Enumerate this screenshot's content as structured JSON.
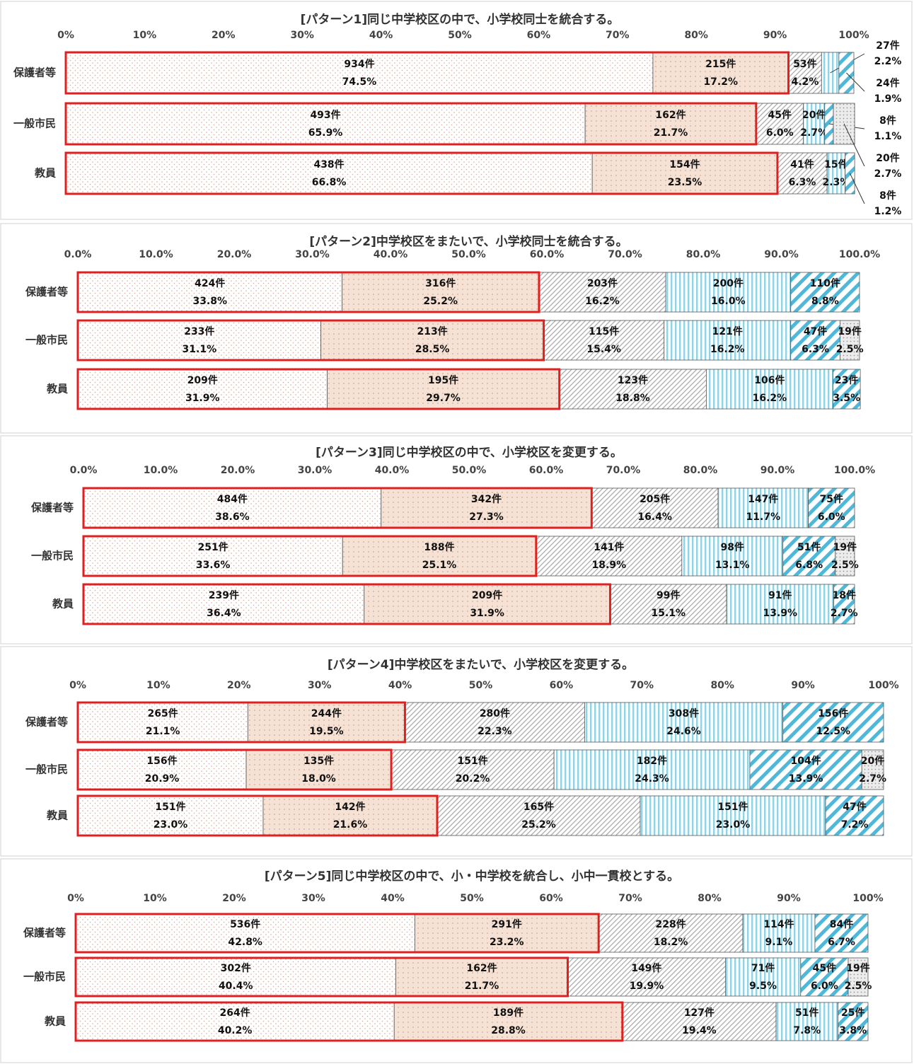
{
  "chart_data": [
    {
      "type": "bar",
      "orientation": "horizontal",
      "stacked": true,
      "title": "[パターン1]同じ中学校区の中で、小学校同士を統合する。",
      "categories": [
        "保護者等",
        "一般市民",
        "教員"
      ],
      "xlim": [
        0,
        100
      ],
      "xticks": [
        {
          "value": 0,
          "label": "0%"
        },
        {
          "value": 10,
          "label": "10%"
        },
        {
          "value": 20,
          "label": "20%"
        },
        {
          "value": 30,
          "label": "30%"
        },
        {
          "value": 40,
          "label": "40%"
        },
        {
          "value": 50,
          "label": "50%"
        },
        {
          "value": 60,
          "label": "60%"
        },
        {
          "value": 70,
          "label": "70%"
        },
        {
          "value": 80,
          "label": "80%"
        },
        {
          "value": 90,
          "label": "90%"
        },
        {
          "value": 100,
          "label": "100%"
        }
      ],
      "series": [
        {
          "color": "#d9a79a",
          "values": [
            74.5,
            65.9,
            66.8
          ],
          "value_labels": [
            "74.5%",
            "65.9%",
            "66.8%"
          ],
          "count_labels": [
            "934件",
            "493件",
            "438件"
          ]
        },
        {
          "color": "#f6e2d5",
          "values": [
            17.2,
            21.7,
            23.5
          ],
          "value_labels": [
            "17.2%",
            "21.7%",
            "23.5%"
          ],
          "count_labels": [
            "215件",
            "162件",
            "154件"
          ]
        },
        {
          "color": "#a6a6a6",
          "values": [
            4.2,
            6.0,
            6.3
          ],
          "value_labels": [
            "4.2%",
            "6.0%",
            "6.3%"
          ],
          "count_labels": [
            "53件",
            "45件",
            "41件"
          ]
        },
        {
          "color": "#8fd3e4",
          "values": [
            2.2,
            2.7,
            2.3
          ],
          "value_labels": [
            "2.2%",
            "2.7%",
            "2.3%"
          ],
          "count_labels": [
            "27件",
            "20件",
            "15件"
          ]
        },
        {
          "color": "#4fb8d8",
          "values": [
            1.9,
            1.1,
            1.2
          ],
          "value_labels": [
            "1.9%",
            "1.1%",
            "1.2%"
          ],
          "count_labels": [
            "24件",
            "8件",
            "8件"
          ]
        },
        {
          "color": "#bfbfbf",
          "values": [
            null,
            2.7,
            null
          ],
          "value_labels": [
            null,
            "2.7%",
            null
          ],
          "count_labels": [
            null,
            "20件",
            null
          ]
        }
      ]
    },
    {
      "type": "bar",
      "orientation": "horizontal",
      "stacked": true,
      "title": "[パターン2]中学校区をまたいで、小学校同士を統合する。",
      "categories": [
        "保護者等",
        "一般市民",
        "教員"
      ],
      "xlim": [
        0,
        100
      ],
      "xticks": [
        {
          "value": 0,
          "label": "0.0%"
        },
        {
          "value": 10,
          "label": "10.0%"
        },
        {
          "value": 20,
          "label": "20.0%"
        },
        {
          "value": 30,
          "label": "30.0%"
        },
        {
          "value": 40,
          "label": "40.0%"
        },
        {
          "value": 50,
          "label": "50.0%"
        },
        {
          "value": 60,
          "label": "60.0%"
        },
        {
          "value": 70,
          "label": "70.0%"
        },
        {
          "value": 80,
          "label": "80.0%"
        },
        {
          "value": 90,
          "label": "90.0%"
        },
        {
          "value": 100,
          "label": "100.0%"
        }
      ],
      "series": [
        {
          "color": "#d9a79a",
          "values": [
            33.8,
            31.1,
            31.9
          ],
          "value_labels": [
            "33.8%",
            "31.1%",
            "31.9%"
          ],
          "count_labels": [
            "424件",
            "233件",
            "209件"
          ]
        },
        {
          "color": "#f6e2d5",
          "values": [
            25.2,
            28.5,
            29.7
          ],
          "value_labels": [
            "25.2%",
            "28.5%",
            "29.7%"
          ],
          "count_labels": [
            "316件",
            "213件",
            "195件"
          ]
        },
        {
          "color": "#a6a6a6",
          "values": [
            16.2,
            15.4,
            18.8
          ],
          "value_labels": [
            "16.2%",
            "15.4%",
            "18.8%"
          ],
          "count_labels": [
            "203件",
            "115件",
            "123件"
          ]
        },
        {
          "color": "#8fd3e4",
          "values": [
            16.0,
            16.2,
            16.2
          ],
          "value_labels": [
            "16.0%",
            "16.2%",
            "16.2%"
          ],
          "count_labels": [
            "200件",
            "121件",
            "106件"
          ]
        },
        {
          "color": "#4fb8d8",
          "values": [
            8.8,
            6.3,
            3.5
          ],
          "value_labels": [
            "8.8%",
            "6.3%",
            "3.5%"
          ],
          "count_labels": [
            "110件",
            "47件",
            "23件"
          ]
        },
        {
          "color": "#bfbfbf",
          "values": [
            null,
            2.5,
            null
          ],
          "value_labels": [
            null,
            "2.5%",
            null
          ],
          "count_labels": [
            null,
            "19件",
            null
          ]
        }
      ]
    },
    {
      "type": "bar",
      "orientation": "horizontal",
      "stacked": true,
      "title": "[パターン3]同じ中学校区の中で、小学校区を変更する。",
      "categories": [
        "保護者等",
        "一般市民",
        "教員"
      ],
      "xlim": [
        0,
        100
      ],
      "xticks": [
        {
          "value": 0,
          "label": "0.0%"
        },
        {
          "value": 10,
          "label": "10.0%"
        },
        {
          "value": 20,
          "label": "20.0%"
        },
        {
          "value": 30,
          "label": "30.0%"
        },
        {
          "value": 40,
          "label": "40.0%"
        },
        {
          "value": 50,
          "label": "50.0%"
        },
        {
          "value": 60,
          "label": "60.0%"
        },
        {
          "value": 70,
          "label": "70.0%"
        },
        {
          "value": 80,
          "label": "80.0%"
        },
        {
          "value": 90,
          "label": "90.0%"
        },
        {
          "value": 100,
          "label": "100.0%"
        }
      ],
      "series": [
        {
          "color": "#d9a79a",
          "values": [
            38.6,
            33.6,
            36.4
          ],
          "value_labels": [
            "38.6%",
            "33.6%",
            "36.4%"
          ],
          "count_labels": [
            "484件",
            "251件",
            "239件"
          ]
        },
        {
          "color": "#f6e2d5",
          "values": [
            27.3,
            25.1,
            31.9
          ],
          "value_labels": [
            "27.3%",
            "25.1%",
            "31.9%"
          ],
          "count_labels": [
            "342件",
            "188件",
            "209件"
          ]
        },
        {
          "color": "#a6a6a6",
          "values": [
            16.4,
            18.9,
            15.1
          ],
          "value_labels": [
            "16.4%",
            "18.9%",
            "15.1%"
          ],
          "count_labels": [
            "205件",
            "141件",
            "99件"
          ]
        },
        {
          "color": "#8fd3e4",
          "values": [
            11.7,
            13.1,
            13.9
          ],
          "value_labels": [
            "11.7%",
            "13.1%",
            "13.9%"
          ],
          "count_labels": [
            "147件",
            "98件",
            "91件"
          ]
        },
        {
          "color": "#4fb8d8",
          "values": [
            6.0,
            6.8,
            2.7
          ],
          "value_labels": [
            "6.0%",
            "6.8%",
            "2.7%"
          ],
          "count_labels": [
            "75件",
            "51件",
            "18件"
          ]
        },
        {
          "color": "#bfbfbf",
          "values": [
            null,
            2.5,
            null
          ],
          "value_labels": [
            null,
            "2.5%",
            null
          ],
          "count_labels": [
            null,
            "19件",
            null
          ]
        }
      ]
    },
    {
      "type": "bar",
      "orientation": "horizontal",
      "stacked": true,
      "title": "[パターン4]中学校区をまたいで、小学校区を変更する。",
      "categories": [
        "保護者等",
        "一般市民",
        "教員"
      ],
      "xlim": [
        0,
        100
      ],
      "xticks": [
        {
          "value": 0,
          "label": "0%"
        },
        {
          "value": 10,
          "label": "10%"
        },
        {
          "value": 20,
          "label": "20%"
        },
        {
          "value": 30,
          "label": "30%"
        },
        {
          "value": 40,
          "label": "40%"
        },
        {
          "value": 50,
          "label": "50%"
        },
        {
          "value": 60,
          "label": "60%"
        },
        {
          "value": 70,
          "label": "70%"
        },
        {
          "value": 80,
          "label": "80%"
        },
        {
          "value": 90,
          "label": "90%"
        },
        {
          "value": 100,
          "label": "100%"
        }
      ],
      "series": [
        {
          "color": "#d9a79a",
          "values": [
            21.1,
            20.9,
            23.0
          ],
          "value_labels": [
            "21.1%",
            "20.9%",
            "23.0%"
          ],
          "count_labels": [
            "265件",
            "156件",
            "151件"
          ]
        },
        {
          "color": "#f6e2d5",
          "values": [
            19.5,
            18.0,
            21.6
          ],
          "value_labels": [
            "19.5%",
            "18.0%",
            "21.6%"
          ],
          "count_labels": [
            "244件",
            "135件",
            "142件"
          ]
        },
        {
          "color": "#a6a6a6",
          "values": [
            22.3,
            20.2,
            25.2
          ],
          "value_labels": [
            "22.3%",
            "20.2%",
            "25.2%"
          ],
          "count_labels": [
            "280件",
            "151件",
            "165件"
          ]
        },
        {
          "color": "#8fd3e4",
          "values": [
            24.6,
            24.3,
            23.0
          ],
          "value_labels": [
            "24.6%",
            "24.3%",
            "23.0%"
          ],
          "count_labels": [
            "308件",
            "182件",
            "151件"
          ]
        },
        {
          "color": "#4fb8d8",
          "values": [
            12.5,
            13.9,
            7.2
          ],
          "value_labels": [
            "12.5%",
            "13.9%",
            "7.2%"
          ],
          "count_labels": [
            "156件",
            "104件",
            "47件"
          ]
        },
        {
          "color": "#bfbfbf",
          "values": [
            null,
            2.7,
            null
          ],
          "value_labels": [
            null,
            "2.7%",
            null
          ],
          "count_labels": [
            null,
            "20件",
            null
          ]
        }
      ]
    },
    {
      "type": "bar",
      "orientation": "horizontal",
      "stacked": true,
      "title": "[パターン5]同じ中学校区の中で、小・中学校を統合し、小中一貫校とする。",
      "categories": [
        "保護者等",
        "一般市民",
        "教員"
      ],
      "xlim": [
        0,
        100
      ],
      "xticks": [
        {
          "value": 0,
          "label": "0%"
        },
        {
          "value": 10,
          "label": "10%"
        },
        {
          "value": 20,
          "label": "20%"
        },
        {
          "value": 30,
          "label": "30%"
        },
        {
          "value": 40,
          "label": "40%"
        },
        {
          "value": 50,
          "label": "50%"
        },
        {
          "value": 60,
          "label": "60%"
        },
        {
          "value": 70,
          "label": "70%"
        },
        {
          "value": 80,
          "label": "80%"
        },
        {
          "value": 90,
          "label": "90%"
        },
        {
          "value": 100,
          "label": "100%"
        }
      ],
      "series": [
        {
          "color": "#d9a79a",
          "values": [
            42.8,
            40.4,
            40.2
          ],
          "value_labels": [
            "42.8%",
            "40.4%",
            "40.2%"
          ],
          "count_labels": [
            "536件",
            "302件",
            "264件"
          ]
        },
        {
          "color": "#f6e2d5",
          "values": [
            23.2,
            21.7,
            28.8
          ],
          "value_labels": [
            "23.2%",
            "21.7%",
            "28.8%"
          ],
          "count_labels": [
            "291件",
            "162件",
            "189件"
          ]
        },
        {
          "color": "#a6a6a6",
          "values": [
            18.2,
            19.9,
            19.4
          ],
          "value_labels": [
            "18.2%",
            "19.9%",
            "19.4%"
          ],
          "count_labels": [
            "228件",
            "149件",
            "127件"
          ]
        },
        {
          "color": "#8fd3e4",
          "values": [
            9.1,
            9.5,
            7.8
          ],
          "value_labels": [
            "9.1%",
            "9.5%",
            "7.8%"
          ],
          "count_labels": [
            "114件",
            "71件",
            "51件"
          ]
        },
        {
          "color": "#4fb8d8",
          "values": [
            6.7,
            6.0,
            3.8
          ],
          "value_labels": [
            "6.7%",
            "6.0%",
            "3.8%"
          ],
          "count_labels": [
            "84件",
            "45件",
            "25件"
          ]
        },
        {
          "color": "#bfbfbf",
          "values": [
            null,
            2.5,
            null
          ],
          "value_labels": [
            null,
            "2.5%",
            null
          ],
          "count_labels": [
            null,
            "19件",
            null
          ]
        }
      ]
    }
  ]
}
